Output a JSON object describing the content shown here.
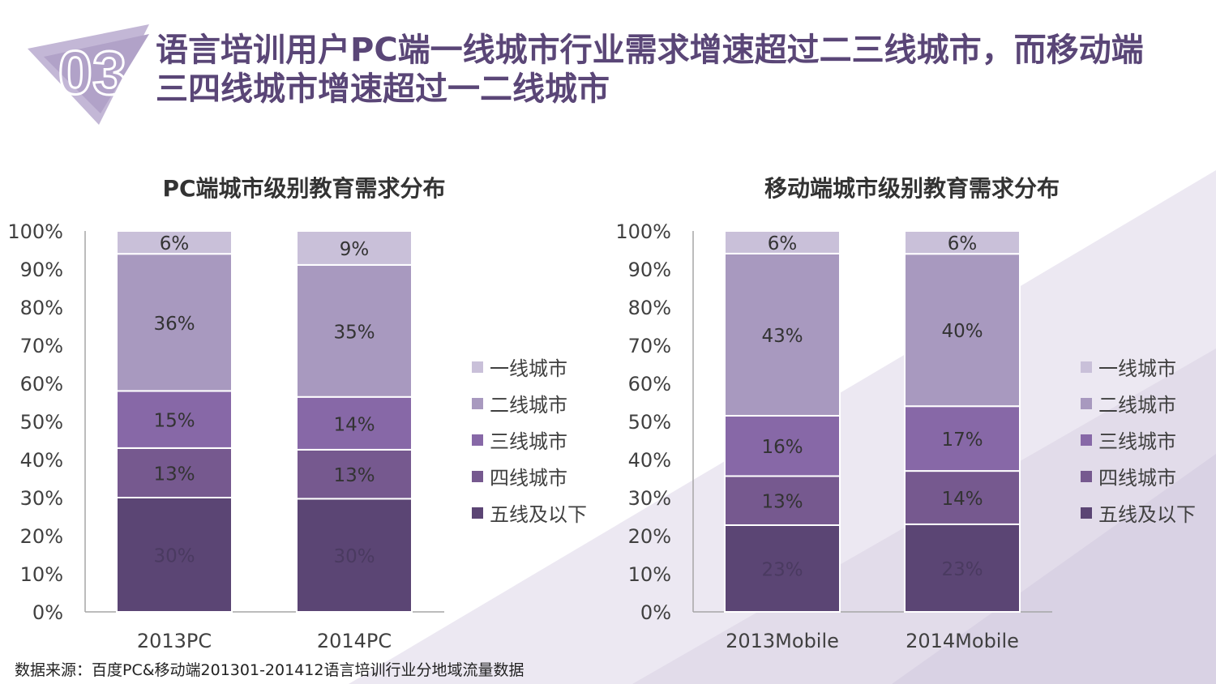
{
  "header": {
    "badge_number": "03",
    "title_line1": "语言培训用户PC端一线城市行业需求增速超过二三线城市，而移动端",
    "title_line2": "三四线城市增速超过一二线城市"
  },
  "source_note": "数据来源：百度PC&移动端201301-201412语言培训行业分地域流量数据",
  "colors": {
    "tier1": "#c9c0d9",
    "tier2": "#a899bf",
    "tier3": "#8768a7",
    "tier4": "#76598f",
    "tier5": "#5b4574"
  },
  "legend_labels": [
    "一线城市",
    "二线城市",
    "三线城市",
    "四线城市",
    "五线及以下"
  ],
  "chart_data": [
    {
      "type": "bar",
      "stacked": true,
      "title": "PC端城市级别教育需求分布",
      "categories": [
        "2013PC",
        "2014PC"
      ],
      "ylim": [
        0,
        100
      ],
      "y_ticks": [
        "0%",
        "10%",
        "20%",
        "30%",
        "40%",
        "50%",
        "60%",
        "70%",
        "80%",
        "90%",
        "100%"
      ],
      "series": [
        {
          "name": "五线及以下",
          "values": [
            30,
            30
          ],
          "labels": [
            "30%",
            "30%"
          ]
        },
        {
          "name": "四线城市",
          "values": [
            13,
            13
          ],
          "labels": [
            "13%",
            "13%"
          ]
        },
        {
          "name": "三线城市",
          "values": [
            15,
            14
          ],
          "labels": [
            "15%",
            "14%"
          ]
        },
        {
          "name": "二线城市",
          "values": [
            36,
            35
          ],
          "labels": [
            "36%",
            "35%"
          ]
        },
        {
          "name": "一线城市",
          "values": [
            6,
            9
          ],
          "labels": [
            "6%",
            "9%"
          ]
        }
      ]
    },
    {
      "type": "bar",
      "stacked": true,
      "title": "移动端城市级别教育需求分布",
      "categories": [
        "2013Mobile",
        "2014Mobile"
      ],
      "ylim": [
        0,
        100
      ],
      "y_ticks": [
        "0%",
        "10%",
        "20%",
        "30%",
        "40%",
        "50%",
        "60%",
        "70%",
        "80%",
        "90%",
        "100%"
      ],
      "series": [
        {
          "name": "五线及以下",
          "values": [
            23,
            23
          ],
          "labels": [
            "23%",
            "23%"
          ]
        },
        {
          "name": "四线城市",
          "values": [
            13,
            14
          ],
          "labels": [
            "13%",
            "14%"
          ]
        },
        {
          "name": "三线城市",
          "values": [
            16,
            17
          ],
          "labels": [
            "16%",
            "17%"
          ]
        },
        {
          "name": "二线城市",
          "values": [
            43,
            40
          ],
          "labels": [
            "43%",
            "40%"
          ]
        },
        {
          "name": "一线城市",
          "values": [
            6,
            6
          ],
          "labels": [
            "6%",
            "6%"
          ]
        }
      ]
    }
  ]
}
